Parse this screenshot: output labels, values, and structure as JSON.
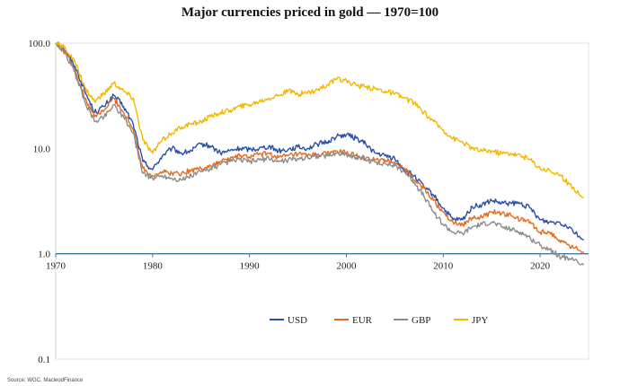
{
  "chart_data": {
    "type": "line",
    "title": "Major currencies priced in gold — 1970=100",
    "xlabel": "",
    "ylabel": "",
    "y_scale": "log",
    "xlim": [
      1970,
      2025
    ],
    "ylim": [
      0.1,
      100
    ],
    "x_ticks": [
      "1970",
      "1980",
      "1990",
      "2000",
      "2010",
      "2020"
    ],
    "y_ticks": [
      "100.0",
      "10.0",
      "1.0",
      "0.1"
    ],
    "legend_position": "lower-center",
    "grid": false,
    "source": "Source: WGC, MacleodFinance",
    "series": [
      {
        "name": "USD",
        "color": "#2b4fa8",
        "x": [
          1970,
          1971,
          1972,
          1973,
          1974,
          1975,
          1976,
          1977,
          1978,
          1979,
          1980,
          1981,
          1982,
          1983,
          1984,
          1985,
          1986,
          1987,
          1988,
          1989,
          1990,
          1991,
          1992,
          1993,
          1994,
          1995,
          1996,
          1997,
          1998,
          1999,
          2000,
          2001,
          2002,
          2003,
          2004,
          2005,
          2006,
          2007,
          2008,
          2009,
          2010,
          2011,
          2012,
          2013,
          2014,
          2015,
          2016,
          2017,
          2018,
          2019,
          2020,
          2021,
          2022,
          2023,
          2024.5
        ],
        "values": [
          100,
          85,
          60,
          35,
          22,
          25,
          32,
          25,
          17,
          7.5,
          6.3,
          8.5,
          10,
          9,
          9.5,
          11,
          10.5,
          9,
          9.5,
          10,
          9.8,
          10,
          10.5,
          9.5,
          9.8,
          10.3,
          10,
          11,
          11.5,
          13,
          13.5,
          12.5,
          11,
          9,
          8.5,
          8,
          6.2,
          5.5,
          4.3,
          3.6,
          2.7,
          2.1,
          2.1,
          2.8,
          2.9,
          3.2,
          3,
          3,
          3,
          2.7,
          2.1,
          2,
          2,
          1.8,
          1.35
        ]
      },
      {
        "name": "EUR",
        "color": "#e36c1f",
        "x": [
          1970,
          1971,
          1972,
          1973,
          1974,
          1975,
          1976,
          1977,
          1978,
          1979,
          1980,
          1981,
          1982,
          1983,
          1984,
          1985,
          1986,
          1987,
          1988,
          1989,
          1990,
          1991,
          1992,
          1993,
          1994,
          1995,
          1996,
          1997,
          1998,
          1999,
          2000,
          2001,
          2002,
          2003,
          2004,
          2005,
          2006,
          2007,
          2008,
          2009,
          2010,
          2011,
          2012,
          2013,
          2014,
          2015,
          2016,
          2017,
          2018,
          2019,
          2020,
          2021,
          2022,
          2023,
          2024.5
        ],
        "values": [
          100,
          82,
          55,
          30,
          20,
          23,
          30,
          22,
          15,
          6.5,
          5.5,
          6,
          5.8,
          5.8,
          6.2,
          6.5,
          6.8,
          7.5,
          8,
          8.5,
          8.3,
          8.8,
          9,
          8.2,
          8.5,
          8.8,
          8.5,
          8.8,
          8.9,
          9.5,
          9,
          8.5,
          8,
          7.8,
          7.6,
          7.4,
          6.5,
          5,
          4.2,
          3.2,
          2.5,
          2,
          1.9,
          2.2,
          2.2,
          2.5,
          2.4,
          2.3,
          2.1,
          2,
          1.6,
          1.6,
          1.35,
          1.2,
          1.05
        ]
      },
      {
        "name": "GBP",
        "color": "#8c8c8c",
        "x": [
          1970,
          1971,
          1972,
          1973,
          1974,
          1975,
          1976,
          1977,
          1978,
          1979,
          1980,
          1981,
          1982,
          1983,
          1984,
          1985,
          1986,
          1987,
          1988,
          1989,
          1990,
          1991,
          1992,
          1993,
          1994,
          1995,
          1996,
          1997,
          1998,
          1999,
          2000,
          2001,
          2002,
          2003,
          2004,
          2005,
          2006,
          2007,
          2008,
          2009,
          2010,
          2011,
          2012,
          2013,
          2014,
          2015,
          2016,
          2017,
          2018,
          2019,
          2020,
          2021,
          2022,
          2023,
          2024.5
        ],
        "values": [
          100,
          80,
          52,
          28,
          18,
          20,
          26,
          20,
          14,
          5.8,
          5.2,
          5.5,
          5.2,
          5,
          5.5,
          6,
          6.5,
          7,
          7.5,
          7.8,
          7.5,
          7.8,
          8,
          7.5,
          7.8,
          8,
          8.2,
          8.5,
          8.5,
          9,
          8.8,
          8.2,
          7.8,
          7.4,
          7.2,
          6.8,
          6,
          4.8,
          3.5,
          2.5,
          1.9,
          1.6,
          1.55,
          1.8,
          1.9,
          2,
          1.8,
          1.7,
          1.6,
          1.4,
          1.2,
          1.1,
          0.95,
          0.9,
          0.78
        ]
      },
      {
        "name": "JPY",
        "color": "#f2b700",
        "x": [
          1970,
          1971,
          1972,
          1973,
          1974,
          1975,
          1976,
          1977,
          1978,
          1979,
          1980,
          1981,
          1982,
          1983,
          1984,
          1985,
          1986,
          1987,
          1988,
          1989,
          1990,
          1991,
          1992,
          1993,
          1994,
          1995,
          1996,
          1997,
          1998,
          1999,
          2000,
          2001,
          2002,
          2003,
          2004,
          2005,
          2006,
          2007,
          2008,
          2009,
          2010,
          2011,
          2012,
          2013,
          2014,
          2015,
          2016,
          2017,
          2018,
          2019,
          2020,
          2021,
          2022,
          2023,
          2024.5
        ],
        "values": [
          100,
          90,
          65,
          38,
          28,
          33,
          42,
          35,
          30,
          12,
          9,
          12,
          14,
          16,
          17,
          18,
          20,
          22,
          23,
          25,
          26,
          28,
          30,
          32,
          35,
          33,
          34,
          36,
          40,
          45,
          44,
          40,
          38,
          37,
          35,
          33,
          30,
          27,
          22,
          18,
          15,
          12.5,
          11.5,
          10,
          9.5,
          9.5,
          9,
          9,
          8.5,
          7.8,
          6.5,
          6.2,
          5.5,
          4.6,
          3.4
        ]
      }
    ]
  }
}
